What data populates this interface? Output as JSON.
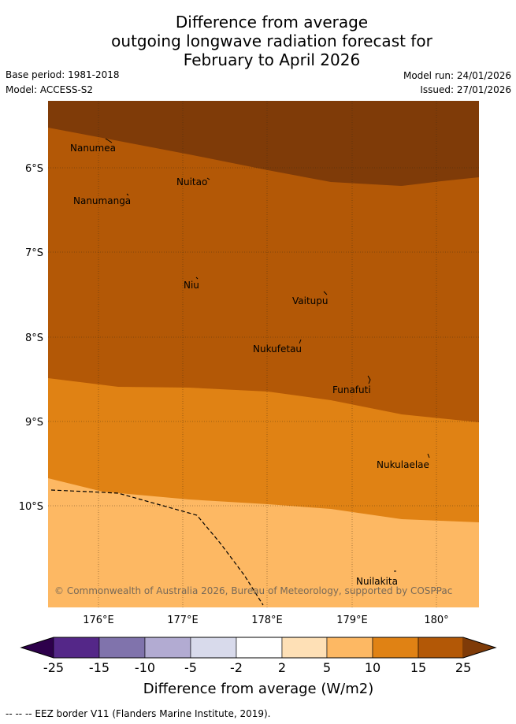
{
  "title": {
    "line1": "Difference from average",
    "line2": "outgoing longwave radiation forecast for",
    "line3": "February to April 2026"
  },
  "meta": {
    "base_period": "Base period: 1981-2018",
    "model": "Model: ACCESS-S2",
    "model_run": "Model run: 24/01/2026",
    "issued": "Issued: 27/01/2026"
  },
  "map": {
    "lat_labels": [
      "6°S",
      "7°S",
      "8°S",
      "9°S",
      "10°S"
    ],
    "lon_labels": [
      "176°E",
      "177°E",
      "178°E",
      "179°E",
      "180°"
    ],
    "bands": [
      {
        "name": "15 to 25",
        "color": "#7f3b08"
      },
      {
        "name": "10 to 15",
        "color": "#b35806"
      },
      {
        "name": "5 to 10",
        "color": "#e08214"
      },
      {
        "name": "2 to 5",
        "color": "#fdb863"
      }
    ],
    "places": [
      "Nanumea",
      "Nuitao",
      "Nanumanga",
      "Niu",
      "Vaitupu",
      "Nukufetau",
      "Funafuti",
      "Nukulaelae",
      "Nuilakita"
    ],
    "copyright": "© Commonwealth of Australia 2026, Bureau of Meteorology, supported by COSPPac"
  },
  "colorbar": {
    "colors": [
      "#2d004b",
      "#542788",
      "#8073ac",
      "#b2abd2",
      "#d8daeb",
      "#ffffff",
      "#fee0b6",
      "#fdb863",
      "#e08214",
      "#b35806",
      "#7f3b08"
    ],
    "ticks": [
      "-25",
      "-15",
      "-10",
      "-5",
      "-2",
      "2",
      "5",
      "10",
      "15",
      "25"
    ],
    "label": "Difference from average (W/m2)"
  },
  "footnote": "--  --  -- EEZ border V11 (Flanders Marine Institute, 2019)."
}
